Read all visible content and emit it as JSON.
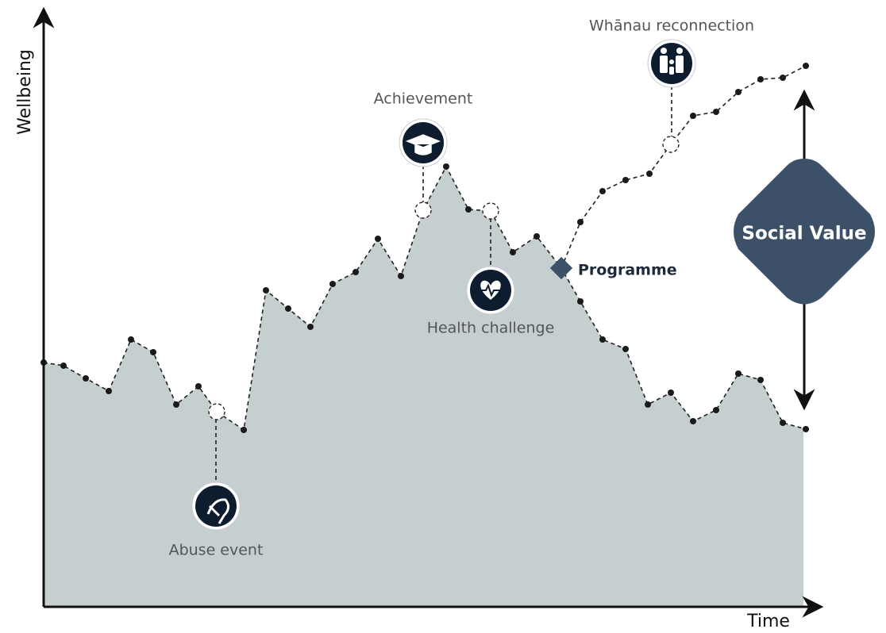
{
  "axes": {
    "y_label": "Wellbeing",
    "x_label": "Time"
  },
  "events": [
    {
      "label": "Abuse event"
    },
    {
      "label": "Achievement"
    },
    {
      "label": "Health challenge"
    },
    {
      "label": "Whānau reconnection"
    }
  ],
  "programme": "Programme",
  "social_value": "Social Value"
}
